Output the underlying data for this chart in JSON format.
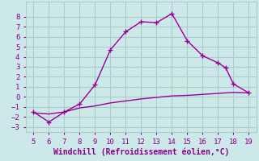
{
  "xlabel": "Windchill (Refroidissement éolien,°C)",
  "xlim": [
    4.5,
    19.5
  ],
  "ylim": [
    -3.5,
    9.5
  ],
  "xticks": [
    5,
    6,
    7,
    8,
    9,
    10,
    11,
    12,
    13,
    14,
    15,
    16,
    17,
    18,
    19
  ],
  "yticks": [
    -3,
    -2,
    -1,
    0,
    1,
    2,
    3,
    4,
    5,
    6,
    7,
    8
  ],
  "background_color": "#cce8e8",
  "grid_color": "#aacccc",
  "line_color": "#990099",
  "curve1_x": [
    5,
    6,
    7,
    8,
    9,
    10,
    11,
    12,
    13,
    14,
    15,
    16,
    17,
    17.5,
    18,
    19
  ],
  "curve1_y": [
    -1.5,
    -2.5,
    -1.5,
    -0.7,
    1.2,
    4.7,
    6.5,
    7.5,
    7.4,
    8.3,
    5.6,
    4.1,
    3.4,
    2.9,
    1.3,
    0.4
  ],
  "curve2_x": [
    5,
    6,
    7,
    8,
    9,
    10,
    11,
    12,
    13,
    14,
    15,
    16,
    17,
    18,
    19
  ],
  "curve2_y": [
    -1.6,
    -1.7,
    -1.5,
    -1.1,
    -0.9,
    -0.6,
    -0.4,
    -0.2,
    -0.05,
    0.1,
    0.15,
    0.25,
    0.35,
    0.45,
    0.4
  ],
  "marker": "+",
  "markersize": 5,
  "linewidth": 1.0,
  "font_color": "#880088",
  "tick_fontsize": 6.5,
  "label_fontsize": 7.0
}
